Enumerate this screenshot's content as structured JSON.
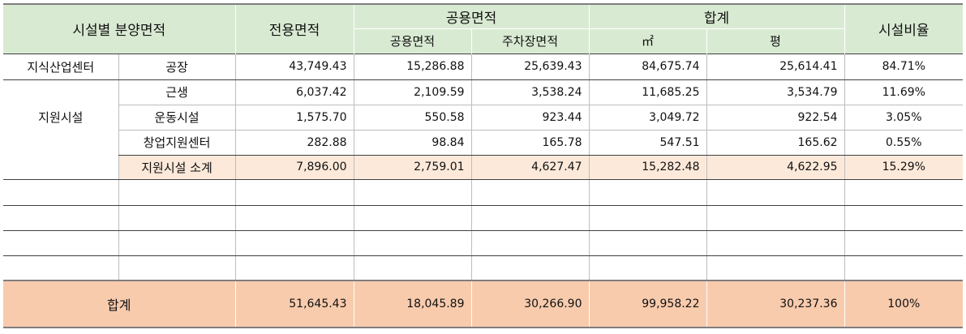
{
  "header": {
    "facility_area": "시설별 분양면적",
    "exclusive_area": "전용면적",
    "common_area": "공용면적",
    "common_area_sub": "공용면적",
    "parking_area": "주차장면적",
    "total": "합계",
    "total_m2": "㎡",
    "total_pyeong": "평",
    "facility_ratio": "시설비율"
  },
  "rows": [
    {
      "category": "지식산업센터",
      "name": "공장",
      "exclusive": "43,749.43",
      "common": "15,286.88",
      "parking": "25,639.43",
      "m2": "84,675.74",
      "pyeong": "25,614.41",
      "ratio": "84.71%"
    },
    {
      "category": "지원시설",
      "name": "근생",
      "exclusive": "6,037.42",
      "common": "2,109.59",
      "parking": "3,538.24",
      "m2": "11,685.25",
      "pyeong": "3,534.79",
      "ratio": "11.69%"
    },
    {
      "name": "운동시설",
      "exclusive": "1,575.70",
      "common": "550.58",
      "parking": "923.44",
      "m2": "3,049.72",
      "pyeong": "922.54",
      "ratio": "3.05%"
    },
    {
      "name": "창업지원센터",
      "exclusive": "282.88",
      "common": "98.84",
      "parking": "165.78",
      "m2": "547.51",
      "pyeong": "165.62",
      "ratio": "0.55%"
    },
    {
      "name": "지원시설 소계",
      "exclusive": "7,896.00",
      "common": "2,759.01",
      "parking": "4,627.47",
      "m2": "15,282.48",
      "pyeong": "4,622.95",
      "ratio": "15.29%"
    }
  ],
  "total": {
    "label": "합계",
    "exclusive": "51,645.43",
    "common": "18,045.89",
    "parking": "30,266.90",
    "m2": "99,958.22",
    "pyeong": "30,237.36",
    "ratio": "100%"
  }
}
